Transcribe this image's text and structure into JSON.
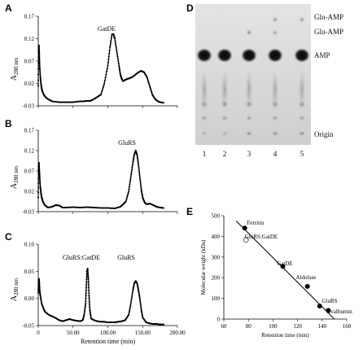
{
  "chart_data": [
    {
      "panel": "A",
      "type": "line",
      "ylabel": "A280 nm",
      "ylabel_main": "A",
      "ylabel_sub": "280 nm",
      "y_ticks": [
        "0.17",
        "0.12",
        "0.07",
        "0.02",
        "-0.03"
      ],
      "ylim": [
        -0.03,
        0.17
      ],
      "xlim": [
        0,
        200
      ],
      "annotations": [
        {
          "text": "GatDE",
          "x": 106,
          "y": 0.132
        }
      ],
      "x": [
        0,
        0.5,
        1,
        1.5,
        2,
        3,
        4,
        5,
        6,
        8,
        10,
        14,
        20,
        30,
        40,
        50,
        60,
        65,
        70,
        75,
        80,
        85,
        90,
        95,
        100,
        103,
        106,
        108,
        110,
        113,
        116,
        118,
        120,
        122,
        125,
        128,
        132,
        136,
        140,
        144,
        148,
        152,
        156,
        160,
        164,
        168,
        172,
        175,
        180
      ],
      "y": [
        0.015,
        0.09,
        0.105,
        0.085,
        0.06,
        0.035,
        0.018,
        0.008,
        0.002,
        -0.005,
        -0.01,
        -0.015,
        -0.02,
        -0.022,
        -0.022,
        -0.022,
        -0.02,
        -0.02,
        -0.019,
        -0.019,
        -0.015,
        -0.01,
        -0.005,
        0.02,
        0.06,
        0.1,
        0.13,
        0.13,
        0.12,
        0.09,
        0.06,
        0.04,
        0.03,
        0.025,
        0.028,
        0.03,
        0.032,
        0.035,
        0.04,
        0.045,
        0.048,
        0.045,
        0.035,
        0.015,
        -0.005,
        -0.015,
        -0.02,
        -0.022,
        -0.023
      ]
    },
    {
      "panel": "B",
      "type": "line",
      "ylabel": "A280 nm",
      "ylabel_main": "A",
      "ylabel_sub": "280 nm",
      "y_ticks": [
        "0.17",
        "0.12",
        "0.07",
        "0.02",
        "-0.03"
      ],
      "ylim": [
        -0.03,
        0.17
      ],
      "xlim": [
        0,
        200
      ],
      "annotations": [
        {
          "text": "GluRS",
          "x": 140,
          "y": 0.13
        }
      ],
      "x": [
        0,
        0.5,
        1,
        1.5,
        2,
        3,
        4,
        5,
        6,
        8,
        10,
        14,
        20,
        25,
        30,
        35,
        40,
        50,
        60,
        70,
        80,
        90,
        100,
        110,
        118,
        122,
        126,
        130,
        133,
        136,
        138,
        140,
        142,
        144,
        146,
        148,
        150,
        153,
        156,
        160,
        165,
        170,
        175,
        180
      ],
      "y": [
        0.005,
        0.075,
        0.09,
        0.072,
        0.055,
        0.03,
        0.015,
        0.005,
        -0.002,
        -0.01,
        -0.015,
        -0.02,
        -0.018,
        -0.014,
        -0.015,
        -0.02,
        -0.02,
        -0.019,
        -0.02,
        -0.019,
        -0.02,
        -0.021,
        -0.021,
        -0.022,
        -0.018,
        -0.012,
        -0.005,
        0.02,
        0.055,
        0.09,
        0.11,
        0.12,
        0.11,
        0.085,
        0.055,
        0.025,
        0.005,
        -0.008,
        -0.012,
        -0.01,
        -0.014,
        -0.018,
        -0.02,
        -0.021
      ]
    },
    {
      "panel": "C",
      "type": "line",
      "ylabel": "A280 nm",
      "ylabel_main": "A",
      "ylabel_sub": "280 nm",
      "y_ticks": [
        "0.10",
        "0.05",
        "0.00",
        "-0.05"
      ],
      "ylim": [
        -0.05,
        0.1
      ],
      "x_ticks": [
        "0",
        "50.00",
        "100.00",
        "150.00",
        "200.00"
      ],
      "xlim": [
        0,
        200
      ],
      "xlabel": "Retention time (min)",
      "annotations": [
        {
          "text": "GluRS:GatDE",
          "x": 68,
          "y": 0.065
        },
        {
          "text": "GluRS",
          "x": 140,
          "y": 0.065
        }
      ],
      "x": [
        0,
        0.5,
        1,
        1.5,
        2,
        3,
        5,
        8,
        10,
        15,
        20,
        25,
        30,
        35,
        40,
        45,
        50,
        55,
        60,
        64,
        66,
        68,
        69,
        70,
        71,
        72,
        73,
        74,
        76,
        80,
        85,
        90,
        95,
        100,
        105,
        110,
        115,
        120,
        125,
        130,
        133,
        136,
        138,
        140,
        142,
        144,
        146,
        148,
        150,
        155,
        160,
        165,
        170,
        175,
        180
      ],
      "y": [
        0.01,
        0.03,
        0.036,
        0.028,
        0.015,
        0.005,
        -0.01,
        -0.02,
        -0.025,
        -0.03,
        -0.033,
        -0.036,
        -0.04,
        -0.042,
        -0.04,
        -0.038,
        -0.04,
        -0.041,
        -0.042,
        -0.04,
        -0.03,
        -0.01,
        0.02,
        0.05,
        0.055,
        0.035,
        0.005,
        -0.02,
        -0.037,
        -0.04,
        -0.042,
        -0.043,
        -0.043,
        -0.044,
        -0.044,
        -0.044,
        -0.043,
        -0.042,
        -0.04,
        -0.03,
        -0.01,
        0.015,
        0.028,
        0.032,
        0.028,
        0.015,
        0.0,
        -0.02,
        -0.035,
        -0.044,
        -0.046,
        -0.047,
        -0.047,
        -0.048,
        -0.048
      ]
    },
    {
      "panel": "E",
      "type": "scatter",
      "xlabel": "Retention time (min)",
      "ylabel": "Molecular weight (kDa)",
      "x_ticks": [
        "60",
        "80",
        "100",
        "120",
        "140",
        "160"
      ],
      "y_ticks": [
        "500",
        "400",
        "300",
        "200",
        "100",
        "0"
      ],
      "xlim": [
        60,
        160
      ],
      "ylim": [
        0,
        500
      ],
      "points": [
        {
          "label": "Ferritin",
          "x": 77,
          "y": 440,
          "filled": true
        },
        {
          "label": "GluRS:GatDE",
          "x": 78,
          "y": 383,
          "filled": false
        },
        {
          "label": "GatDE",
          "x": 108,
          "y": 255,
          "filled": true
        },
        {
          "label": "Aldolase",
          "x": 128,
          "y": 158,
          "filled": true
        },
        {
          "label": "GluRS",
          "x": 138,
          "y": 63,
          "filled": true
        },
        {
          "label": "Ovalbumin",
          "x": 145,
          "y": 42,
          "filled": true
        }
      ],
      "fit_line": {
        "x": [
          70,
          150
        ],
        "y": [
          475,
          0
        ]
      }
    }
  ],
  "panels": {
    "A": "A",
    "B": "B",
    "C": "C",
    "D": "D",
    "E": "E"
  },
  "tlc": {
    "lanes": [
      "1",
      "2",
      "3",
      "4",
      "5"
    ],
    "labels": [
      "Gln-AMP",
      "Glu-AMP",
      "AMP",
      "Origin"
    ]
  }
}
